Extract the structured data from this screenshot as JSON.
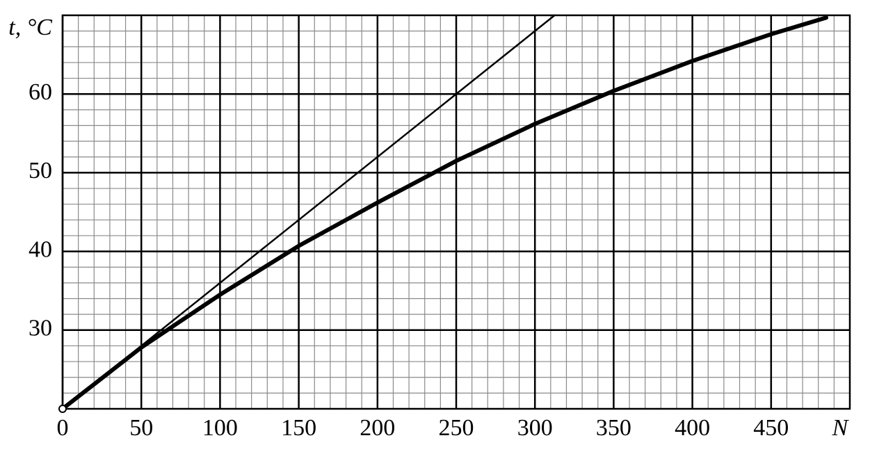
{
  "chart_data": {
    "type": "line",
    "xlabel": "N",
    "ylabel": "t, °C",
    "xlim": [
      0,
      500
    ],
    "ylim": [
      20,
      70
    ],
    "xticks": [
      0,
      50,
      100,
      150,
      200,
      250,
      300,
      350,
      400,
      450
    ],
    "yticks": [
      30,
      40,
      50,
      60
    ],
    "grid": true,
    "minor_divisions": 5,
    "series": [
      {
        "color": "#000000",
        "x": [
          0,
          50,
          100,
          150,
          200,
          250,
          300,
          350,
          400,
          450,
          485
        ],
        "values": [
          20,
          27.8,
          34.5,
          40.7,
          46.2,
          51.5,
          56.2,
          60.4,
          64.2,
          67.6,
          69.7
        ]
      },
      {
        "color": "#000000",
        "x": [
          0,
          312.5
        ],
        "values": [
          20,
          70
        ]
      }
    ]
  }
}
